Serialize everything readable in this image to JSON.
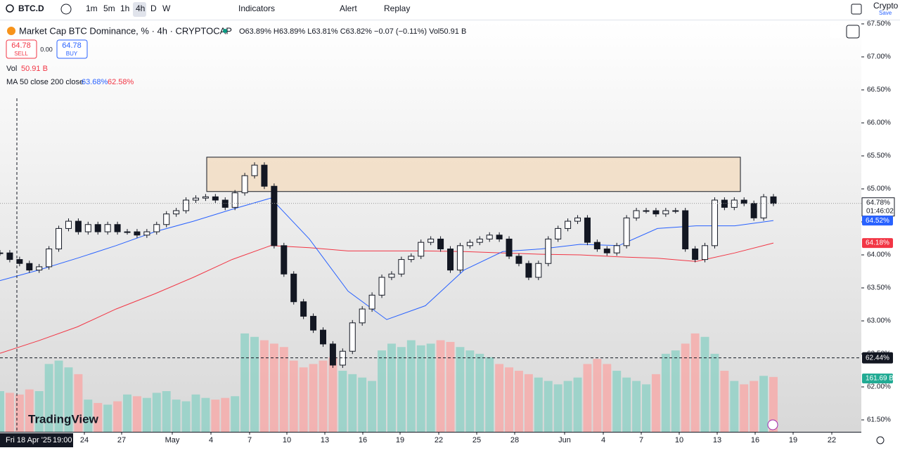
{
  "toolbar": {
    "symbol": "BTC.D",
    "intervals": [
      "1m",
      "5m",
      "1h",
      "4h",
      "D",
      "W"
    ],
    "indicators": "Indicators",
    "alert": "Alert",
    "replay": "Replay",
    "account": "Crypto",
    "save": "Save"
  },
  "legend": {
    "title": "Market Cap BTC Dominance, % · 4h · CRYPTOCAP",
    "ohlc": "O63.89% H63.89% L63.81% C63.82% −0.07 (−0.11%) Vol50.91 B",
    "sell_price": "64.78",
    "sell": "SELL",
    "spread": "0.00",
    "buy_price": "64.78",
    "buy": "BUY",
    "vol_label": "Vol",
    "vol_value": "50.91 B",
    "ma_label": "MA 50 close 200 close",
    "ma50_value": "63.68%",
    "ma200_value": "62.58%"
  },
  "chart": {
    "type": "candlestick",
    "ylim": [
      61.5,
      67.5
    ],
    "yticks": [
      {
        "value": 67.5,
        "label": "67.50%"
      },
      {
        "value": 67.0,
        "label": "67.00%"
      },
      {
        "value": 66.5,
        "label": "66.50%"
      },
      {
        "value": 66.0,
        "label": "66.00%"
      },
      {
        "value": 65.5,
        "label": "65.50%"
      },
      {
        "value": 65.0,
        "label": "65.00%"
      },
      {
        "value": 64.5,
        "label": "64.50%"
      },
      {
        "value": 64.0,
        "label": "64.00%"
      },
      {
        "value": 63.5,
        "label": "63.50%"
      },
      {
        "value": 63.0,
        "label": "63.00%"
      },
      {
        "value": 62.5,
        "label": "62.50%"
      },
      {
        "value": 62.0,
        "label": "62.00%"
      },
      {
        "value": 61.5,
        "label": "61.50%"
      }
    ],
    "xticks": [
      "24",
      "27",
      "May",
      "4",
      "7",
      "10",
      "13",
      "16",
      "19",
      "22",
      "25",
      "28",
      "Jun",
      "4",
      "7",
      "10",
      "13",
      "16",
      "19",
      "22"
    ],
    "cursor_date": "Fri 18 Apr '25",
    "cursor_time": "19:00",
    "closes": [
      64.03,
      63.93,
      63.87,
      63.77,
      63.82,
      64.09,
      64.4,
      64.51,
      64.35,
      64.46,
      64.35,
      64.46,
      64.35,
      64.35,
      64.3,
      64.35,
      64.46,
      64.62,
      64.67,
      64.83,
      64.86,
      64.88,
      64.83,
      64.72,
      64.94,
      65.2,
      65.36,
      65.04,
      64.14,
      63.71,
      63.29,
      63.07,
      62.86,
      62.65,
      62.33,
      62.54,
      62.97,
      63.18,
      63.39,
      63.66,
      63.71,
      63.93,
      63.98,
      64.19,
      64.24,
      64.09,
      63.77,
      64.14,
      64.19,
      64.24,
      64.3,
      64.24,
      63.98,
      63.87,
      63.66,
      63.87,
      64.24,
      64.4,
      64.51,
      64.56,
      64.19,
      64.09,
      64.03,
      64.14,
      64.56,
      64.67,
      64.67,
      64.62,
      64.67,
      64.67,
      64.09,
      63.93,
      64.14,
      64.83,
      64.72,
      64.83,
      64.78,
      64.56,
      64.88,
      64.78
    ],
    "volumes": [
      120,
      115,
      110,
      125,
      120,
      200,
      210,
      190,
      170,
      95,
      85,
      80,
      90,
      110,
      105,
      100,
      115,
      120,
      95,
      90,
      110,
      100,
      95,
      100,
      105,
      290,
      280,
      270,
      260,
      250,
      210,
      190,
      200,
      210,
      220,
      180,
      170,
      160,
      150,
      240,
      260,
      250,
      270,
      255,
      260,
      270,
      265,
      250,
      240,
      230,
      220,
      200,
      190,
      180,
      170,
      160,
      150,
      140,
      150,
      160,
      200,
      215,
      200,
      180,
      160,
      150,
      140,
      170,
      230,
      240,
      260,
      290,
      280,
      230,
      180,
      150,
      140,
      150,
      165,
      161.69
    ],
    "ma50": {
      "color": "#2962ff",
      "values": [
        63.61,
        63.77,
        63.95,
        64.14,
        64.35,
        64.51,
        64.69,
        64.86,
        64.24,
        63.45,
        63.02,
        63.23,
        63.77,
        64.05,
        64.09,
        64.16,
        64.14,
        64.4,
        64.44,
        64.44,
        64.52
      ]
    },
    "ma200": {
      "color": "#f23645",
      "values": [
        62.51,
        62.7,
        62.91,
        63.18,
        63.41,
        63.66,
        63.93,
        64.14,
        64.11,
        64.06,
        64.06,
        64.06,
        64.05,
        64.03,
        64.01,
        64.0,
        63.97,
        63.95,
        63.9,
        64.03,
        64.18
      ]
    },
    "zone": {
      "top": 65.48,
      "bottom": 64.96
    },
    "cursor_price": 62.44,
    "cursor_price_label": "62.44%",
    "last_price": 64.78,
    "last_price_label": "64.78%",
    "countdown": "01:46:02",
    "ma50_last_label": "64.52%",
    "ma200_last_label": "64.18%",
    "volume_last_label": "161.69 B",
    "brand": "TradingView"
  }
}
